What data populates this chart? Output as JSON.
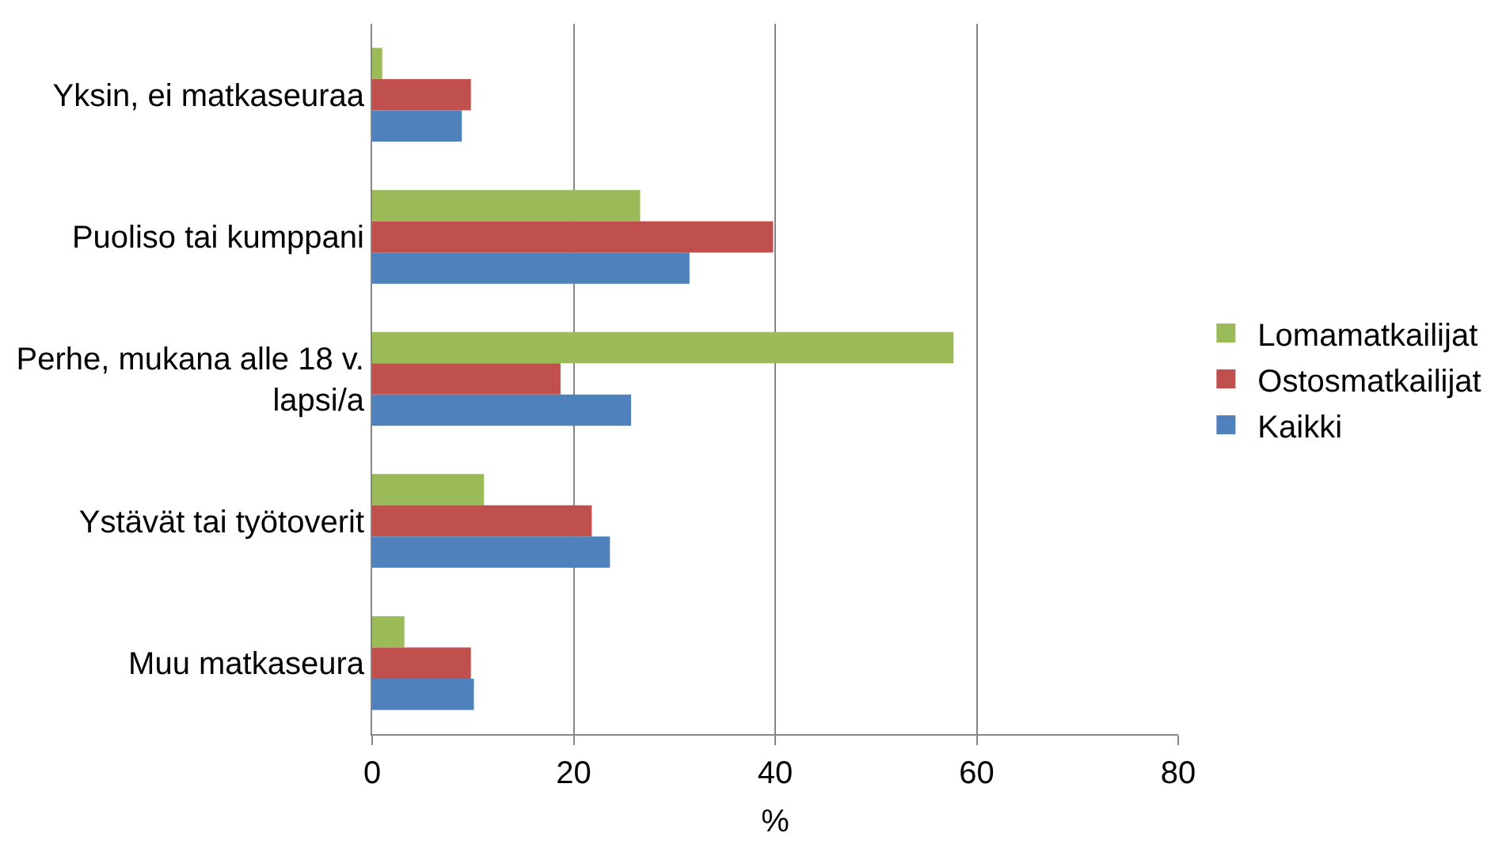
{
  "chart_data": {
    "type": "bar",
    "orientation": "horizontal",
    "xlabel": "%",
    "categories": [
      "Yksin, ei matkaseuraa",
      "Puoliso tai kumppani",
      "Perhe, mukana alle 18 v. lapsi/a",
      "Ystävät tai työtoverit",
      "Muu matkaseura"
    ],
    "series": [
      {
        "name": "Lomamatkailijat",
        "color": "#9bbb59",
        "values": [
          1.0,
          26.6,
          57.7,
          11.1,
          3.2
        ]
      },
      {
        "name": "Ostosmatkailijat",
        "color": "#c0504d",
        "values": [
          9.8,
          39.8,
          18.7,
          21.8,
          9.8
        ]
      },
      {
        "name": "Kaikki",
        "color": "#4f81bd",
        "values": [
          8.9,
          31.5,
          25.7,
          23.6,
          10.1
        ]
      }
    ],
    "xlim": [
      0,
      80
    ],
    "xticks": [
      0,
      20,
      40,
      60,
      80
    ],
    "grid": "x",
    "legend": "right"
  }
}
